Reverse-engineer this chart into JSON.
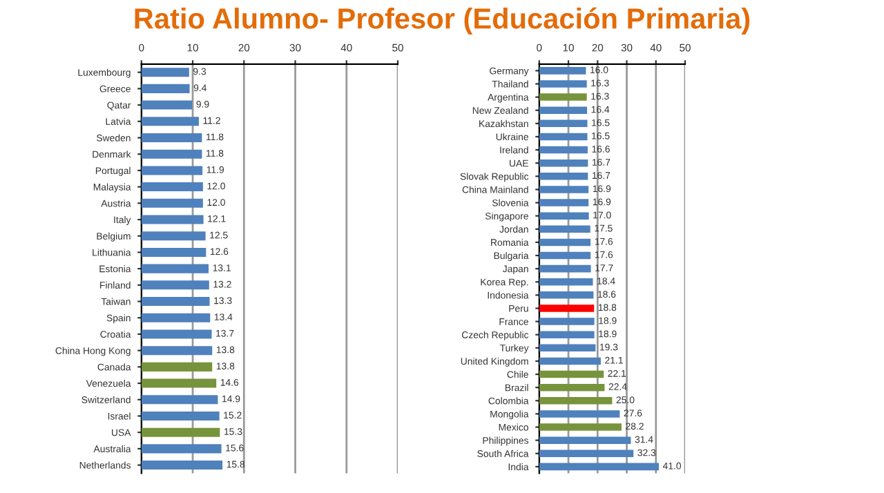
{
  "chart_data": [
    {
      "type": "bar",
      "orientation": "horizontal",
      "title": "Ratio Alumno- Profesor (Educación Primaria)",
      "categories": [
        "Luxembourg",
        "Greece",
        "Qatar",
        "Latvia",
        "Sweden",
        "Denmark",
        "Portugal",
        "Malaysia",
        "Austria",
        "Italy",
        "Belgium",
        "Lithuania",
        "Estonia",
        "Finland",
        "Taiwan",
        "Spain",
        "Croatia",
        "China Hong Kong",
        "Canada",
        "Venezuela",
        "Switzerland",
        "Israel",
        "USA",
        "Australia",
        "Netherlands"
      ],
      "values": [
        9.3,
        9.4,
        9.9,
        11.2,
        11.8,
        11.8,
        11.9,
        12.0,
        12.0,
        12.1,
        12.5,
        12.6,
        13.1,
        13.2,
        13.3,
        13.4,
        13.7,
        13.8,
        13.8,
        14.6,
        14.9,
        15.2,
        15.3,
        15.6,
        15.8
      ],
      "value_labels": [
        "9.3",
        "9.4",
        "9.9",
        "11.2",
        "11.8",
        "11.8",
        "11.9",
        "12.0",
        "12.0",
        "12.1",
        "12.5",
        "12.6",
        "13.1",
        "13.2",
        "13.3",
        "13.4",
        "13.7",
        "13.8",
        "13.8",
        "14.6",
        "14.9",
        "15.2",
        "15.3",
        "15.6",
        "15.8"
      ],
      "colors": [
        "#4f81bd",
        "#4f81bd",
        "#4f81bd",
        "#4f81bd",
        "#4f81bd",
        "#4f81bd",
        "#4f81bd",
        "#4f81bd",
        "#4f81bd",
        "#4f81bd",
        "#4f81bd",
        "#4f81bd",
        "#4f81bd",
        "#4f81bd",
        "#4f81bd",
        "#4f81bd",
        "#4f81bd",
        "#4f81bd",
        "#77933c",
        "#77933c",
        "#4f81bd",
        "#4f81bd",
        "#77933c",
        "#4f81bd",
        "#4f81bd"
      ],
      "xlim": [
        0,
        50
      ],
      "xticks": [
        0,
        10,
        20,
        30,
        40,
        50
      ],
      "grid": "x"
    },
    {
      "type": "bar",
      "orientation": "horizontal",
      "categories": [
        "Germany",
        "Thailand",
        "Argentina",
        "New Zealand",
        "Kazakhstan",
        "Ukraine",
        "Ireland",
        "UAE",
        "Slovak Republic",
        "China Mainland",
        "Slovenia",
        "Singapore",
        "Jordan",
        "Romania",
        "Bulgaria",
        "Japan",
        "Korea Rep.",
        "Indonesia",
        "Peru",
        "France",
        "Czech Republic",
        "Turkey",
        "United Kingdom",
        "Chile",
        "Brazil",
        "Colombia",
        "Mongolia",
        "Mexico",
        "Philippines",
        "South Africa",
        "India"
      ],
      "values": [
        16.0,
        16.3,
        16.3,
        16.4,
        16.5,
        16.5,
        16.6,
        16.7,
        16.7,
        16.9,
        16.9,
        17.0,
        17.5,
        17.6,
        17.6,
        17.7,
        18.4,
        18.6,
        18.8,
        18.9,
        18.9,
        19.3,
        21.1,
        22.1,
        22.4,
        25.0,
        27.6,
        28.2,
        31.4,
        32.3,
        41.0
      ],
      "value_labels": [
        "16.0",
        "16.3",
        "16.3",
        "16.4",
        "16.5",
        "16.5",
        "16.6",
        "16.7",
        "16.7",
        "16.9",
        "16.9",
        "17.0",
        "17.5",
        "17.6",
        "17.6",
        "17.7",
        "18.4",
        "18.6",
        "18.8",
        "18.9",
        "18.9",
        "19.3",
        "21.1",
        "22.1",
        "22.4",
        "25.0",
        "27.6",
        "28.2",
        "31.4",
        "32.3",
        "41.0"
      ],
      "colors": [
        "#4f81bd",
        "#4f81bd",
        "#77933c",
        "#4f81bd",
        "#4f81bd",
        "#4f81bd",
        "#4f81bd",
        "#4f81bd",
        "#4f81bd",
        "#4f81bd",
        "#4f81bd",
        "#4f81bd",
        "#4f81bd",
        "#4f81bd",
        "#4f81bd",
        "#4f81bd",
        "#4f81bd",
        "#4f81bd",
        "#ff0000",
        "#4f81bd",
        "#4f81bd",
        "#4f81bd",
        "#4f81bd",
        "#77933c",
        "#77933c",
        "#77933c",
        "#4f81bd",
        "#77933c",
        "#4f81bd",
        "#4f81bd",
        "#4f81bd"
      ],
      "xlim": [
        0,
        50
      ],
      "xticks": [
        0,
        10,
        20,
        30,
        40,
        50
      ],
      "grid": "x"
    }
  ]
}
